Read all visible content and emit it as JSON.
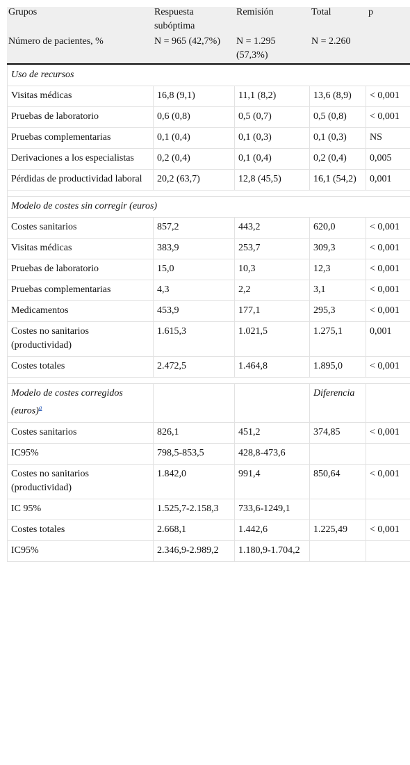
{
  "header": {
    "col1_row1": "Grupos",
    "col2_row1": "Respuesta subóptima",
    "col3_row1": "Remisión",
    "col4_row1": "Total",
    "col5_row1": "p",
    "col1_row2": "Número de pacientes, %",
    "col2_row2": "N = 965 (42,7%)",
    "col3_row2": "N = 1.295 (57,3%)",
    "col4_row2": "N = 2.260"
  },
  "sections": {
    "s1": "Uso de recursos",
    "s2": "Modelo de costes sin corregir (euros)",
    "s3": "Modelo de costes corregidos (euros)",
    "s3_note": "a",
    "s3_diff": "Diferencia"
  },
  "rows": [
    [
      "Visitas médicas",
      "16,8 (9,1)",
      "11,1 (8,2)",
      "13,6 (8,9)",
      "< 0,001"
    ],
    [
      "Pruebas de laboratorio",
      "0,6 (0,8)",
      "0,5 (0,7)",
      "0,5 (0,8)",
      "< 0,001"
    ],
    [
      "Pruebas complementarias",
      "0,1 (0,4)",
      "0,1 (0,3)",
      "0,1 (0,3)",
      "NS"
    ],
    [
      "Derivaciones a los especialistas",
      "0,2 (0,4)",
      "0,1 (0,4)",
      "0,2 (0,4)",
      "0,005"
    ],
    [
      "Pérdidas de productividad laboral",
      "20,2 (63,7)",
      "12,8 (45,5)",
      "16,1 (54,2)",
      "0,001"
    ],
    [
      "Costes sanitarios",
      "857,2",
      "443,2",
      "620,0",
      "< 0,001"
    ],
    [
      "Visitas médicas",
      "383,9",
      "253,7",
      "309,3",
      "< 0,001"
    ],
    [
      "Pruebas de laboratorio",
      "15,0",
      "10,3",
      "12,3",
      "< 0,001"
    ],
    [
      "Pruebas complementarias",
      "4,3",
      "2,2",
      "3,1",
      "< 0,001"
    ],
    [
      "Medicamentos",
      "453,9",
      "177,1",
      "295,3",
      "< 0,001"
    ],
    [
      "Costes no sanitarios (productividad)",
      "1.615,3",
      "1.021,5",
      "1.275,1",
      "0,001"
    ],
    [
      "Costes totales",
      "2.472,5",
      "1.464,8",
      "1.895,0",
      "< 0,001"
    ],
    [
      "Costes sanitarios",
      "826,1",
      "451,2",
      "374,85",
      "< 0,001"
    ],
    [
      "IC95%",
      "798,5-853,5",
      "428,8-473,6",
      "",
      ""
    ],
    [
      "Costes no sanitarios (productividad)",
      "1.842,0",
      "991,4",
      "850,64",
      "< 0,001"
    ],
    [
      "IC 95%",
      "1.525,7-2.158,3",
      "733,6-1249,1",
      "",
      ""
    ],
    [
      "Costes totales",
      "2.668,1",
      "1.442,6",
      "1.225,49",
      "< 0,001"
    ],
    [
      "IC95%",
      "2.346,9-2.989,2",
      "1.180,9-1.704,2",
      "",
      ""
    ]
  ]
}
